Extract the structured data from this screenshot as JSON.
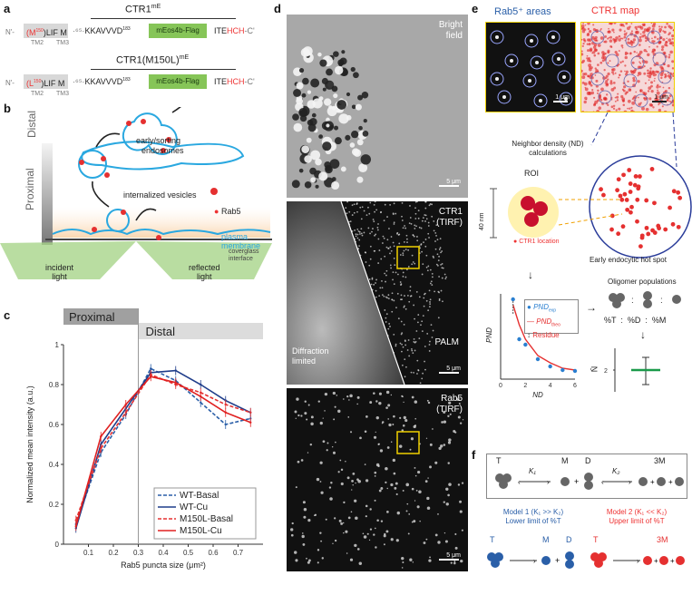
{
  "panel_labels": {
    "a": "a",
    "b": "b",
    "c": "c",
    "d": "d",
    "e": "e",
    "f": "f"
  },
  "panel_a": {
    "construct1_title": "CTR1",
    "construct1_title_sup": "mE",
    "construct2_title": "CTR1(M150L)",
    "construct2_title_sup": "mE",
    "nterm": "N'-",
    "dots": "··",
    "seg1_wt_red": "(M",
    "seg1_wt_sup": "150",
    "seg1_wt_tail": ")LIF M",
    "seg1_mut_red": "(L",
    "seg1_mut_sup": "150",
    "seg1_mut_tail": ")LIF M",
    "gap": "·⁶⁵·",
    "tail": "KKAVVVD",
    "tail_sup": "183",
    "green_box": "mEos4b-Flag",
    "ite": "ITE",
    "hch": "HCH",
    "cterm": "-C'",
    "tm2": "TM2",
    "tm3": "TM3"
  },
  "panel_b": {
    "distal": "Distal",
    "proximal": "Proximal",
    "early_sorting": "early/sorting",
    "endosomes": "endosomes",
    "internalized": "internalized vesicles",
    "rab5": "Rab5",
    "plasma": "plasma",
    "membrane": "membrane",
    "coverglass": "coverglass",
    "interface": "interface",
    "incident": "incident",
    "incident2": "light",
    "reflected": "reflected",
    "reflected2": "light"
  },
  "panel_c": {
    "proximal_header": "Proximal",
    "distal_header": "Distal"
  },
  "chart_data": {
    "type": "line",
    "xlabel": "Rab5 puncta size (μm²)",
    "ylabel": "Normalized mean intensity (a.u.)",
    "xlim": [
      0,
      0.8
    ],
    "ylim": [
      0,
      1.0
    ],
    "xticks": [
      "0.1",
      "0.2",
      "0.3",
      "0.4",
      "0.5",
      "0.6",
      "0.7"
    ],
    "yticks": [
      "0",
      "0.2",
      "0.4",
      "0.6",
      "0.8",
      "1"
    ],
    "x": [
      0.05,
      0.15,
      0.25,
      0.35,
      0.45,
      0.55,
      0.65,
      0.75
    ],
    "threshold": 0.3,
    "legend_position": "bottom-right",
    "series": [
      {
        "name": "WT-Basal",
        "color": "#2a5fa8",
        "dash": true,
        "values": [
          0.1,
          0.46,
          0.65,
          0.88,
          0.82,
          0.71,
          0.6,
          0.63
        ]
      },
      {
        "name": "WT-Cu",
        "color": "#1f3d8a",
        "dash": false,
        "values": [
          0.08,
          0.5,
          0.68,
          0.86,
          0.87,
          0.8,
          0.72,
          0.66
        ]
      },
      {
        "name": "M150L-Basal",
        "color": "#e53030",
        "dash": true,
        "values": [
          0.12,
          0.48,
          0.66,
          0.85,
          0.8,
          0.76,
          0.7,
          0.66
        ]
      },
      {
        "name": "M150L-Cu",
        "color": "#e02020",
        "dash": false,
        "values": [
          0.09,
          0.54,
          0.7,
          0.84,
          0.81,
          0.74,
          0.66,
          0.61
        ]
      }
    ]
  },
  "panel_d": {
    "bright": "Bright",
    "field": "field",
    "ctr1": "CTR1",
    "tirf": "(TIRF)",
    "palm": "PALM",
    "diffraction": "Diffraction",
    "limited": "limited",
    "rab5": "Rab5",
    "tirf2": "(TIRF)",
    "scale": "5 μm"
  },
  "panel_e": {
    "rab5_areas": "Rab5⁺ areas",
    "ctr1_map": "CTR1 map",
    "scale1": "1 μm",
    "scale2": "1 μm",
    "nd_title1": "Neighbor density (ND)",
    "nd_title2": "calculations",
    "roi": "ROI",
    "nm40": "40 nm",
    "ctr1_location": "CTR1 location",
    "hotspot": "Early endocytic hot spot",
    "oligomer": "Oligomer populations",
    "pct": "%T  :  %D  :  %M",
    "nbar": "N̄",
    "legend_exp": "PND",
    "legend_exp_sub": "exp",
    "legend_theo": "PND",
    "legend_theo_sub": "theo",
    "legend_res": "Residue",
    "pnd_axis": "PND",
    "nd_axis": "ND",
    "nd_ticks": [
      "0",
      "2",
      "4",
      "6"
    ]
  },
  "panel_f": {
    "t": "T",
    "m": "M",
    "d": "D",
    "m3": "3M",
    "k1": "K₁",
    "k2": "K₂",
    "model1_a": "Model 1 (K₁ >> K₂)",
    "model1_b": "Lower limit of %T",
    "model2_a": "Model 2 (K₁ << K₂)",
    "model2_b": "Upper limit of %T",
    "plus": "+"
  }
}
